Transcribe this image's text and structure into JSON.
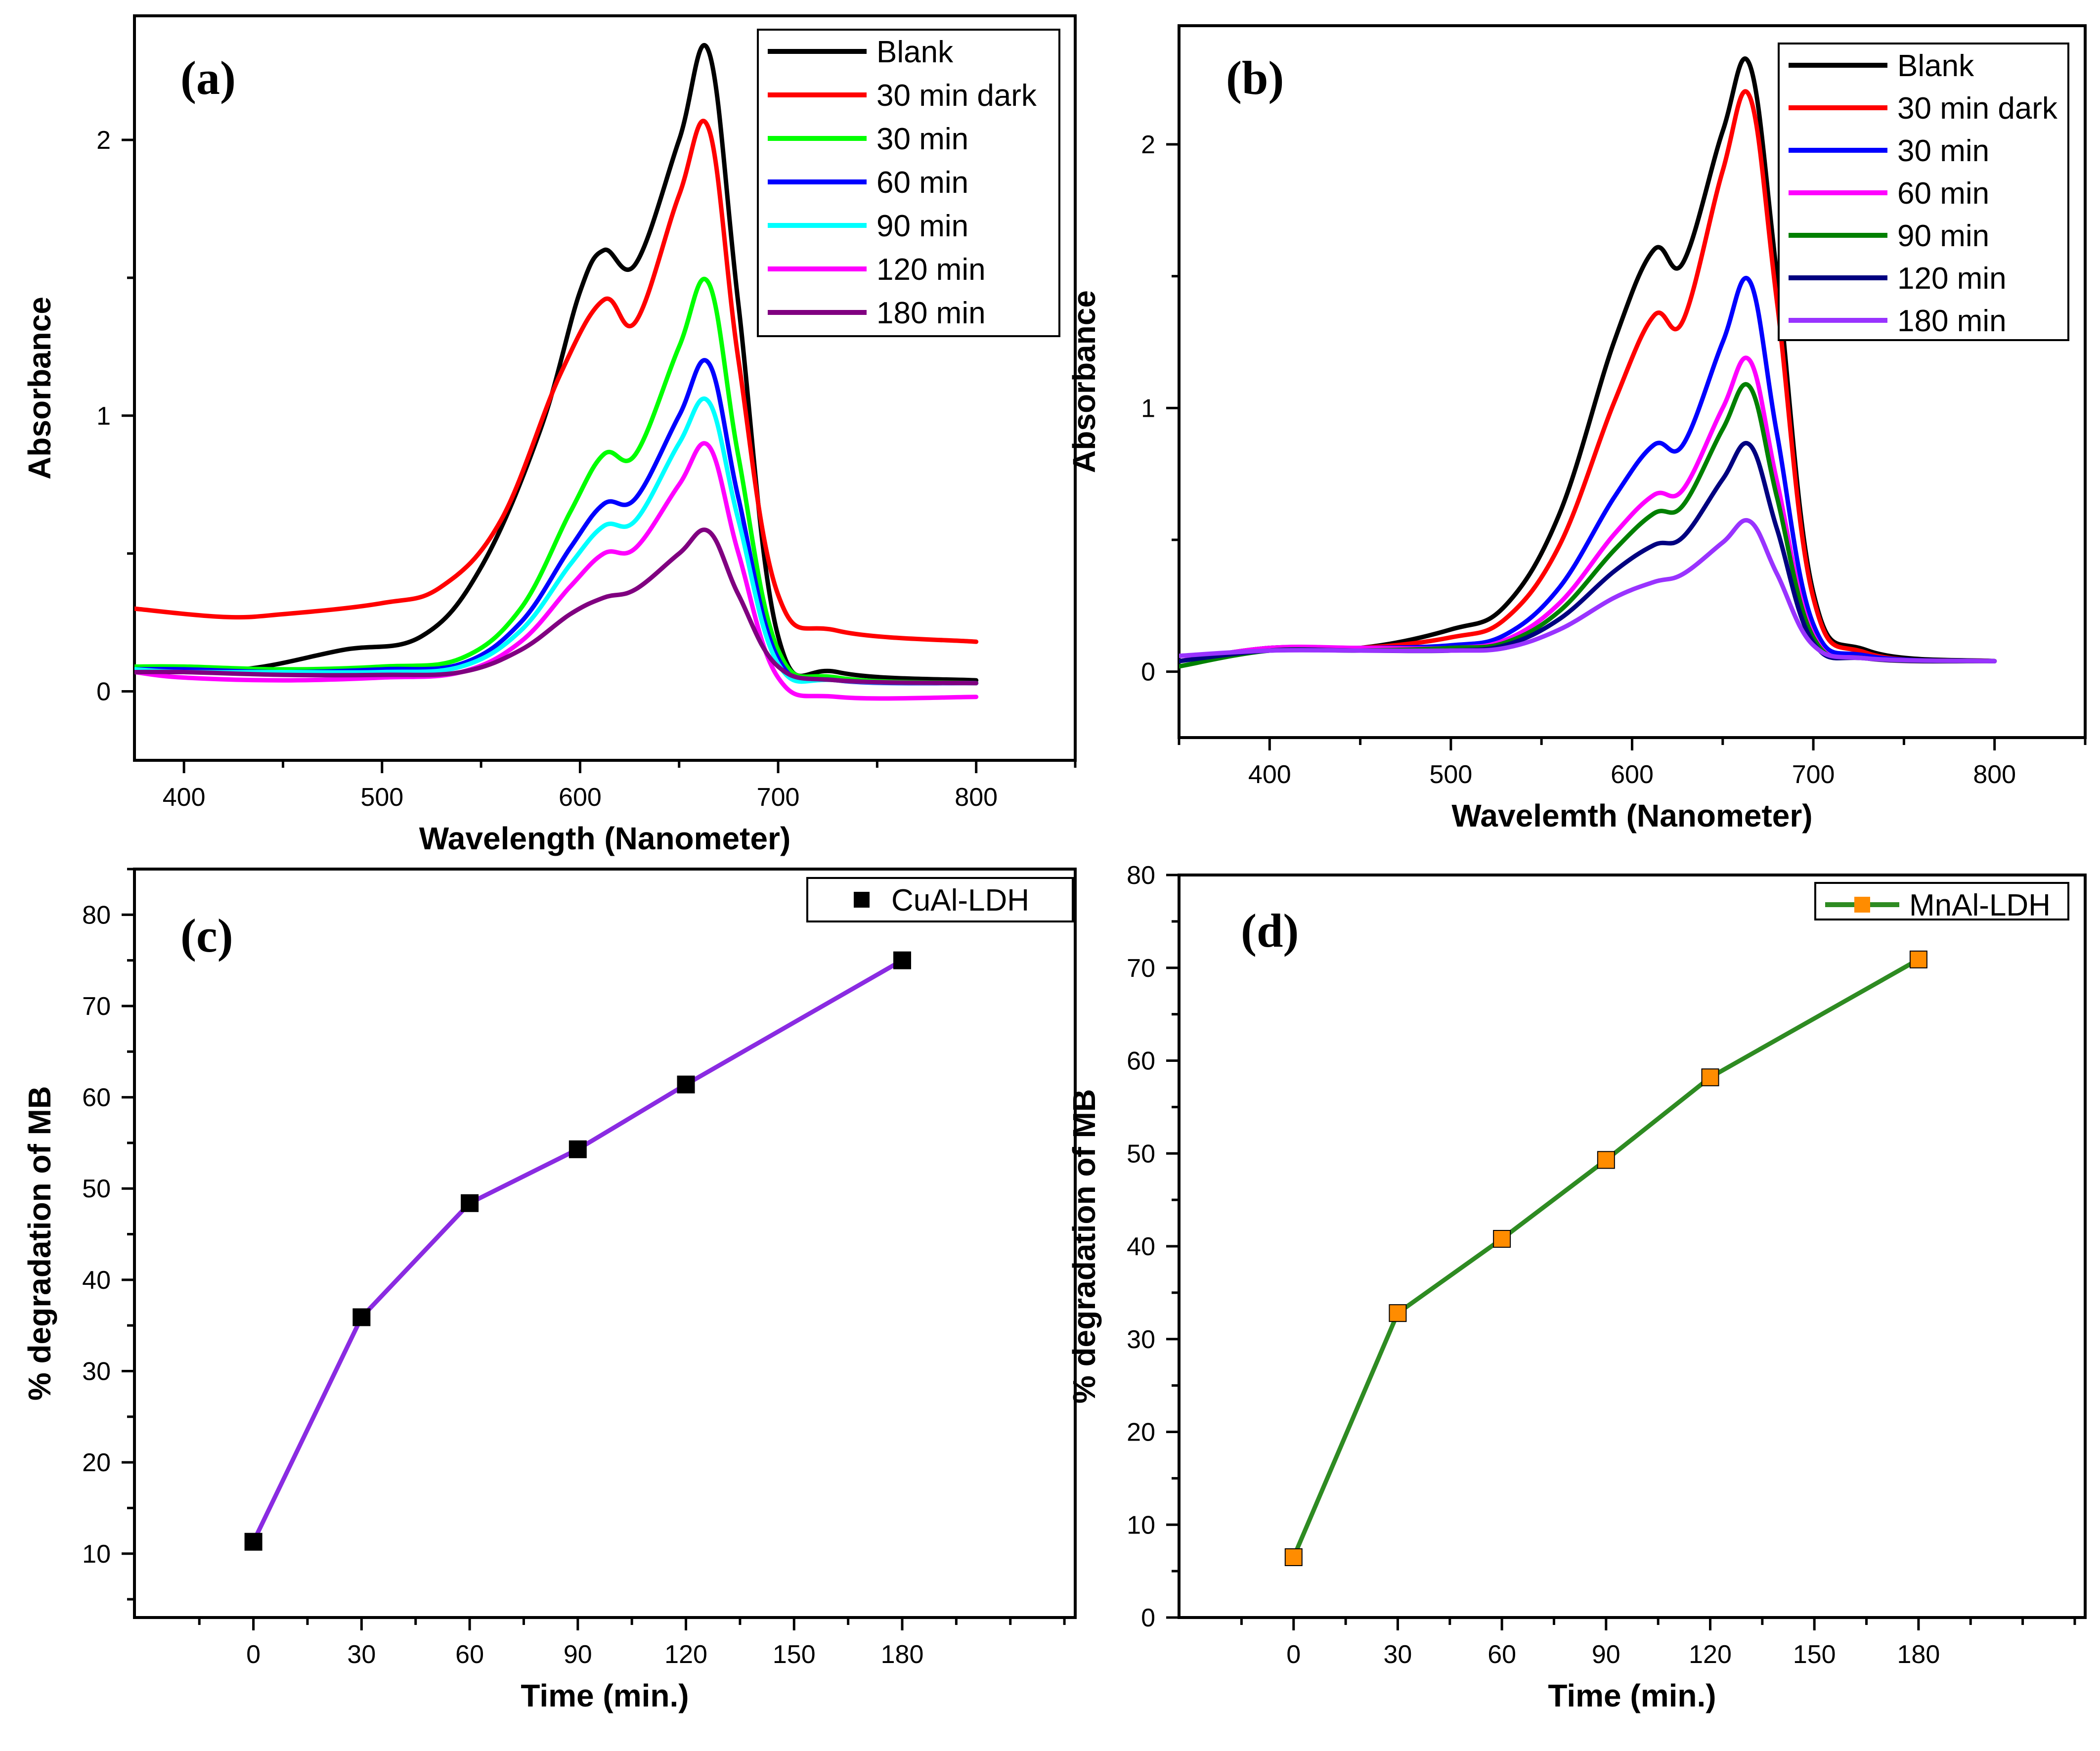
{
  "chart_data": [
    {
      "panel": "(a)",
      "type": "line",
      "xlabel": "Wavelength (Nanometer)",
      "ylabel": "Absorbance",
      "xlim": [
        375,
        850
      ],
      "ylim": [
        -0.25,
        2.45
      ],
      "xticks": [
        400,
        500,
        600,
        700,
        800
      ],
      "yticks": [
        0,
        1,
        2
      ],
      "legend_position": "top-right",
      "series": [
        {
          "name": "Blank",
          "color": "#000000",
          "x": [
            375,
            430,
            480,
            520,
            550,
            580,
            600,
            612,
            628,
            650,
            665,
            680,
            700,
            730,
            800
          ],
          "y": [
            0.07,
            0.08,
            0.15,
            0.2,
            0.45,
            0.95,
            1.45,
            1.6,
            1.55,
            2.0,
            2.32,
            1.4,
            0.2,
            0.07,
            0.04
          ]
        },
        {
          "name": "30 min dark",
          "color": "#ff0000",
          "x": [
            375,
            420,
            450,
            500,
            530,
            560,
            590,
            612,
            628,
            650,
            665,
            680,
            700,
            730,
            800
          ],
          "y": [
            0.3,
            0.27,
            0.28,
            0.32,
            0.38,
            0.62,
            1.15,
            1.42,
            1.34,
            1.8,
            2.04,
            1.2,
            0.35,
            0.22,
            0.18
          ]
        },
        {
          "name": "30 min",
          "color": "#00ff00",
          "x": [
            375,
            400,
            450,
            500,
            540,
            570,
            595,
            612,
            628,
            650,
            665,
            680,
            700,
            730,
            800
          ],
          "y": [
            0.09,
            0.09,
            0.08,
            0.09,
            0.12,
            0.3,
            0.65,
            0.86,
            0.86,
            1.25,
            1.48,
            0.85,
            0.15,
            0.05,
            0.03
          ]
        },
        {
          "name": "60 min",
          "color": "#0000ff",
          "x": [
            375,
            400,
            450,
            500,
            540,
            570,
            595,
            612,
            628,
            650,
            665,
            680,
            700,
            730,
            800
          ],
          "y": [
            0.08,
            0.08,
            0.07,
            0.08,
            0.1,
            0.25,
            0.52,
            0.68,
            0.7,
            1.0,
            1.19,
            0.7,
            0.12,
            0.04,
            0.03
          ]
        },
        {
          "name": "90 min",
          "color": "#00ffff",
          "x": [
            375,
            400,
            450,
            500,
            540,
            570,
            595,
            612,
            628,
            650,
            665,
            680,
            700,
            730,
            800
          ],
          "y": [
            0.08,
            0.07,
            0.07,
            0.07,
            0.09,
            0.22,
            0.46,
            0.6,
            0.62,
            0.9,
            1.05,
            0.62,
            0.1,
            0.04,
            0.03
          ]
        },
        {
          "name": "120 min",
          "color": "#ff00ff",
          "x": [
            375,
            400,
            450,
            500,
            540,
            570,
            595,
            612,
            628,
            650,
            665,
            680,
            700,
            730,
            800
          ],
          "y": [
            0.07,
            0.05,
            0.04,
            0.05,
            0.07,
            0.18,
            0.38,
            0.5,
            0.52,
            0.75,
            0.89,
            0.5,
            0.05,
            -0.02,
            -0.02
          ]
        },
        {
          "name": "180 min",
          "color": "#800080",
          "x": [
            375,
            400,
            450,
            500,
            540,
            570,
            595,
            612,
            628,
            650,
            665,
            680,
            700,
            730,
            800
          ],
          "y": [
            0.07,
            0.07,
            0.06,
            0.06,
            0.07,
            0.15,
            0.28,
            0.34,
            0.37,
            0.5,
            0.58,
            0.35,
            0.09,
            0.04,
            0.03
          ]
        }
      ]
    },
    {
      "panel": "(b)",
      "type": "line",
      "xlabel": "Wavelemth (Nanometer)",
      "ylabel": "Absorbance",
      "xlim": [
        350,
        850
      ],
      "ylim": [
        -0.25,
        2.45
      ],
      "xticks": [
        400,
        500,
        600,
        700,
        800
      ],
      "yticks": [
        0,
        1,
        2
      ],
      "legend_position": "top-right",
      "series": [
        {
          "name": "Blank",
          "color": "#000000",
          "x": [
            350,
            400,
            450,
            500,
            530,
            560,
            590,
            612,
            628,
            650,
            665,
            680,
            700,
            730,
            800
          ],
          "y": [
            0.04,
            0.09,
            0.09,
            0.16,
            0.25,
            0.6,
            1.25,
            1.6,
            1.55,
            2.05,
            2.3,
            1.5,
            0.3,
            0.08,
            0.04
          ]
        },
        {
          "name": "30 min dark",
          "color": "#ff0000",
          "x": [
            350,
            400,
            450,
            500,
            530,
            560,
            590,
            612,
            628,
            650,
            665,
            680,
            700,
            730,
            800
          ],
          "y": [
            0.04,
            0.09,
            0.09,
            0.13,
            0.2,
            0.48,
            1.02,
            1.35,
            1.33,
            1.9,
            2.18,
            1.4,
            0.28,
            0.07,
            0.04
          ]
        },
        {
          "name": "30 min",
          "color": "#0000ff",
          "x": [
            350,
            400,
            450,
            500,
            530,
            560,
            590,
            612,
            628,
            650,
            665,
            680,
            700,
            730,
            800
          ],
          "y": [
            0.04,
            0.09,
            0.09,
            0.1,
            0.14,
            0.32,
            0.66,
            0.86,
            0.86,
            1.25,
            1.48,
            0.9,
            0.18,
            0.06,
            0.04
          ]
        },
        {
          "name": "60 min",
          "color": "#ff00ff",
          "x": [
            350,
            400,
            450,
            500,
            530,
            560,
            590,
            612,
            628,
            650,
            665,
            680,
            700,
            730,
            800
          ],
          "y": [
            0.04,
            0.09,
            0.09,
            0.09,
            0.12,
            0.26,
            0.52,
            0.67,
            0.69,
            1.0,
            1.18,
            0.72,
            0.14,
            0.05,
            0.04
          ]
        },
        {
          "name": "90 min",
          "color": "#008000",
          "x": [
            350,
            400,
            450,
            500,
            530,
            560,
            590,
            612,
            628,
            650,
            665,
            680,
            700,
            730,
            800
          ],
          "y": [
            0.02,
            0.08,
            0.08,
            0.09,
            0.11,
            0.23,
            0.46,
            0.6,
            0.63,
            0.92,
            1.08,
            0.66,
            0.13,
            0.05,
            0.04
          ]
        },
        {
          "name": "120 min",
          "color": "#000080",
          "x": [
            350,
            400,
            450,
            500,
            530,
            560,
            590,
            612,
            628,
            650,
            665,
            680,
            700,
            730,
            800
          ],
          "y": [
            0.04,
            0.08,
            0.08,
            0.08,
            0.1,
            0.2,
            0.38,
            0.48,
            0.51,
            0.73,
            0.86,
            0.54,
            0.11,
            0.05,
            0.04
          ]
        },
        {
          "name": "180 min",
          "color": "#9933ff",
          "x": [
            350,
            400,
            450,
            500,
            530,
            560,
            590,
            612,
            628,
            650,
            665,
            680,
            700,
            730,
            800
          ],
          "y": [
            0.06,
            0.08,
            0.08,
            0.08,
            0.09,
            0.16,
            0.28,
            0.34,
            0.37,
            0.49,
            0.57,
            0.37,
            0.1,
            0.05,
            0.04
          ]
        }
      ]
    },
    {
      "panel": "(c)",
      "type": "line",
      "xlabel": "Time (min.)",
      "ylabel": "% degradation of MB",
      "xlim": [
        -33,
        228
      ],
      "ylim": [
        3,
        85
      ],
      "xticks": [
        0,
        30,
        60,
        90,
        120,
        150,
        180
      ],
      "yticks": [
        10,
        20,
        30,
        40,
        50,
        60,
        70,
        80
      ],
      "legend_position": "top-right",
      "series": [
        {
          "name": "CuAl-LDH",
          "line_color": "#8a2be2",
          "marker_color": "#000000",
          "marker": "square",
          "x": [
            0,
            30,
            60,
            90,
            120,
            180
          ],
          "y": [
            11.3,
            35.9,
            48.4,
            54.3,
            61.4,
            75.0
          ]
        }
      ]
    },
    {
      "panel": "(d)",
      "type": "line",
      "xlabel": "Time (min.)",
      "ylabel": "% degradation of MB",
      "xlim": [
        -33,
        228
      ],
      "ylim": [
        0,
        80
      ],
      "xticks": [
        0,
        30,
        60,
        90,
        120,
        150,
        180
      ],
      "yticks": [
        0,
        10,
        20,
        30,
        40,
        50,
        60,
        70,
        80
      ],
      "legend_position": "top-right",
      "series": [
        {
          "name": "MnAl-LDH",
          "line_color": "#2e8b22",
          "marker_color": "#ff8c00",
          "marker": "square",
          "x": [
            0,
            30,
            60,
            90,
            120,
            180
          ],
          "y": [
            6.5,
            32.8,
            40.8,
            49.3,
            58.2,
            70.9
          ]
        }
      ]
    }
  ]
}
